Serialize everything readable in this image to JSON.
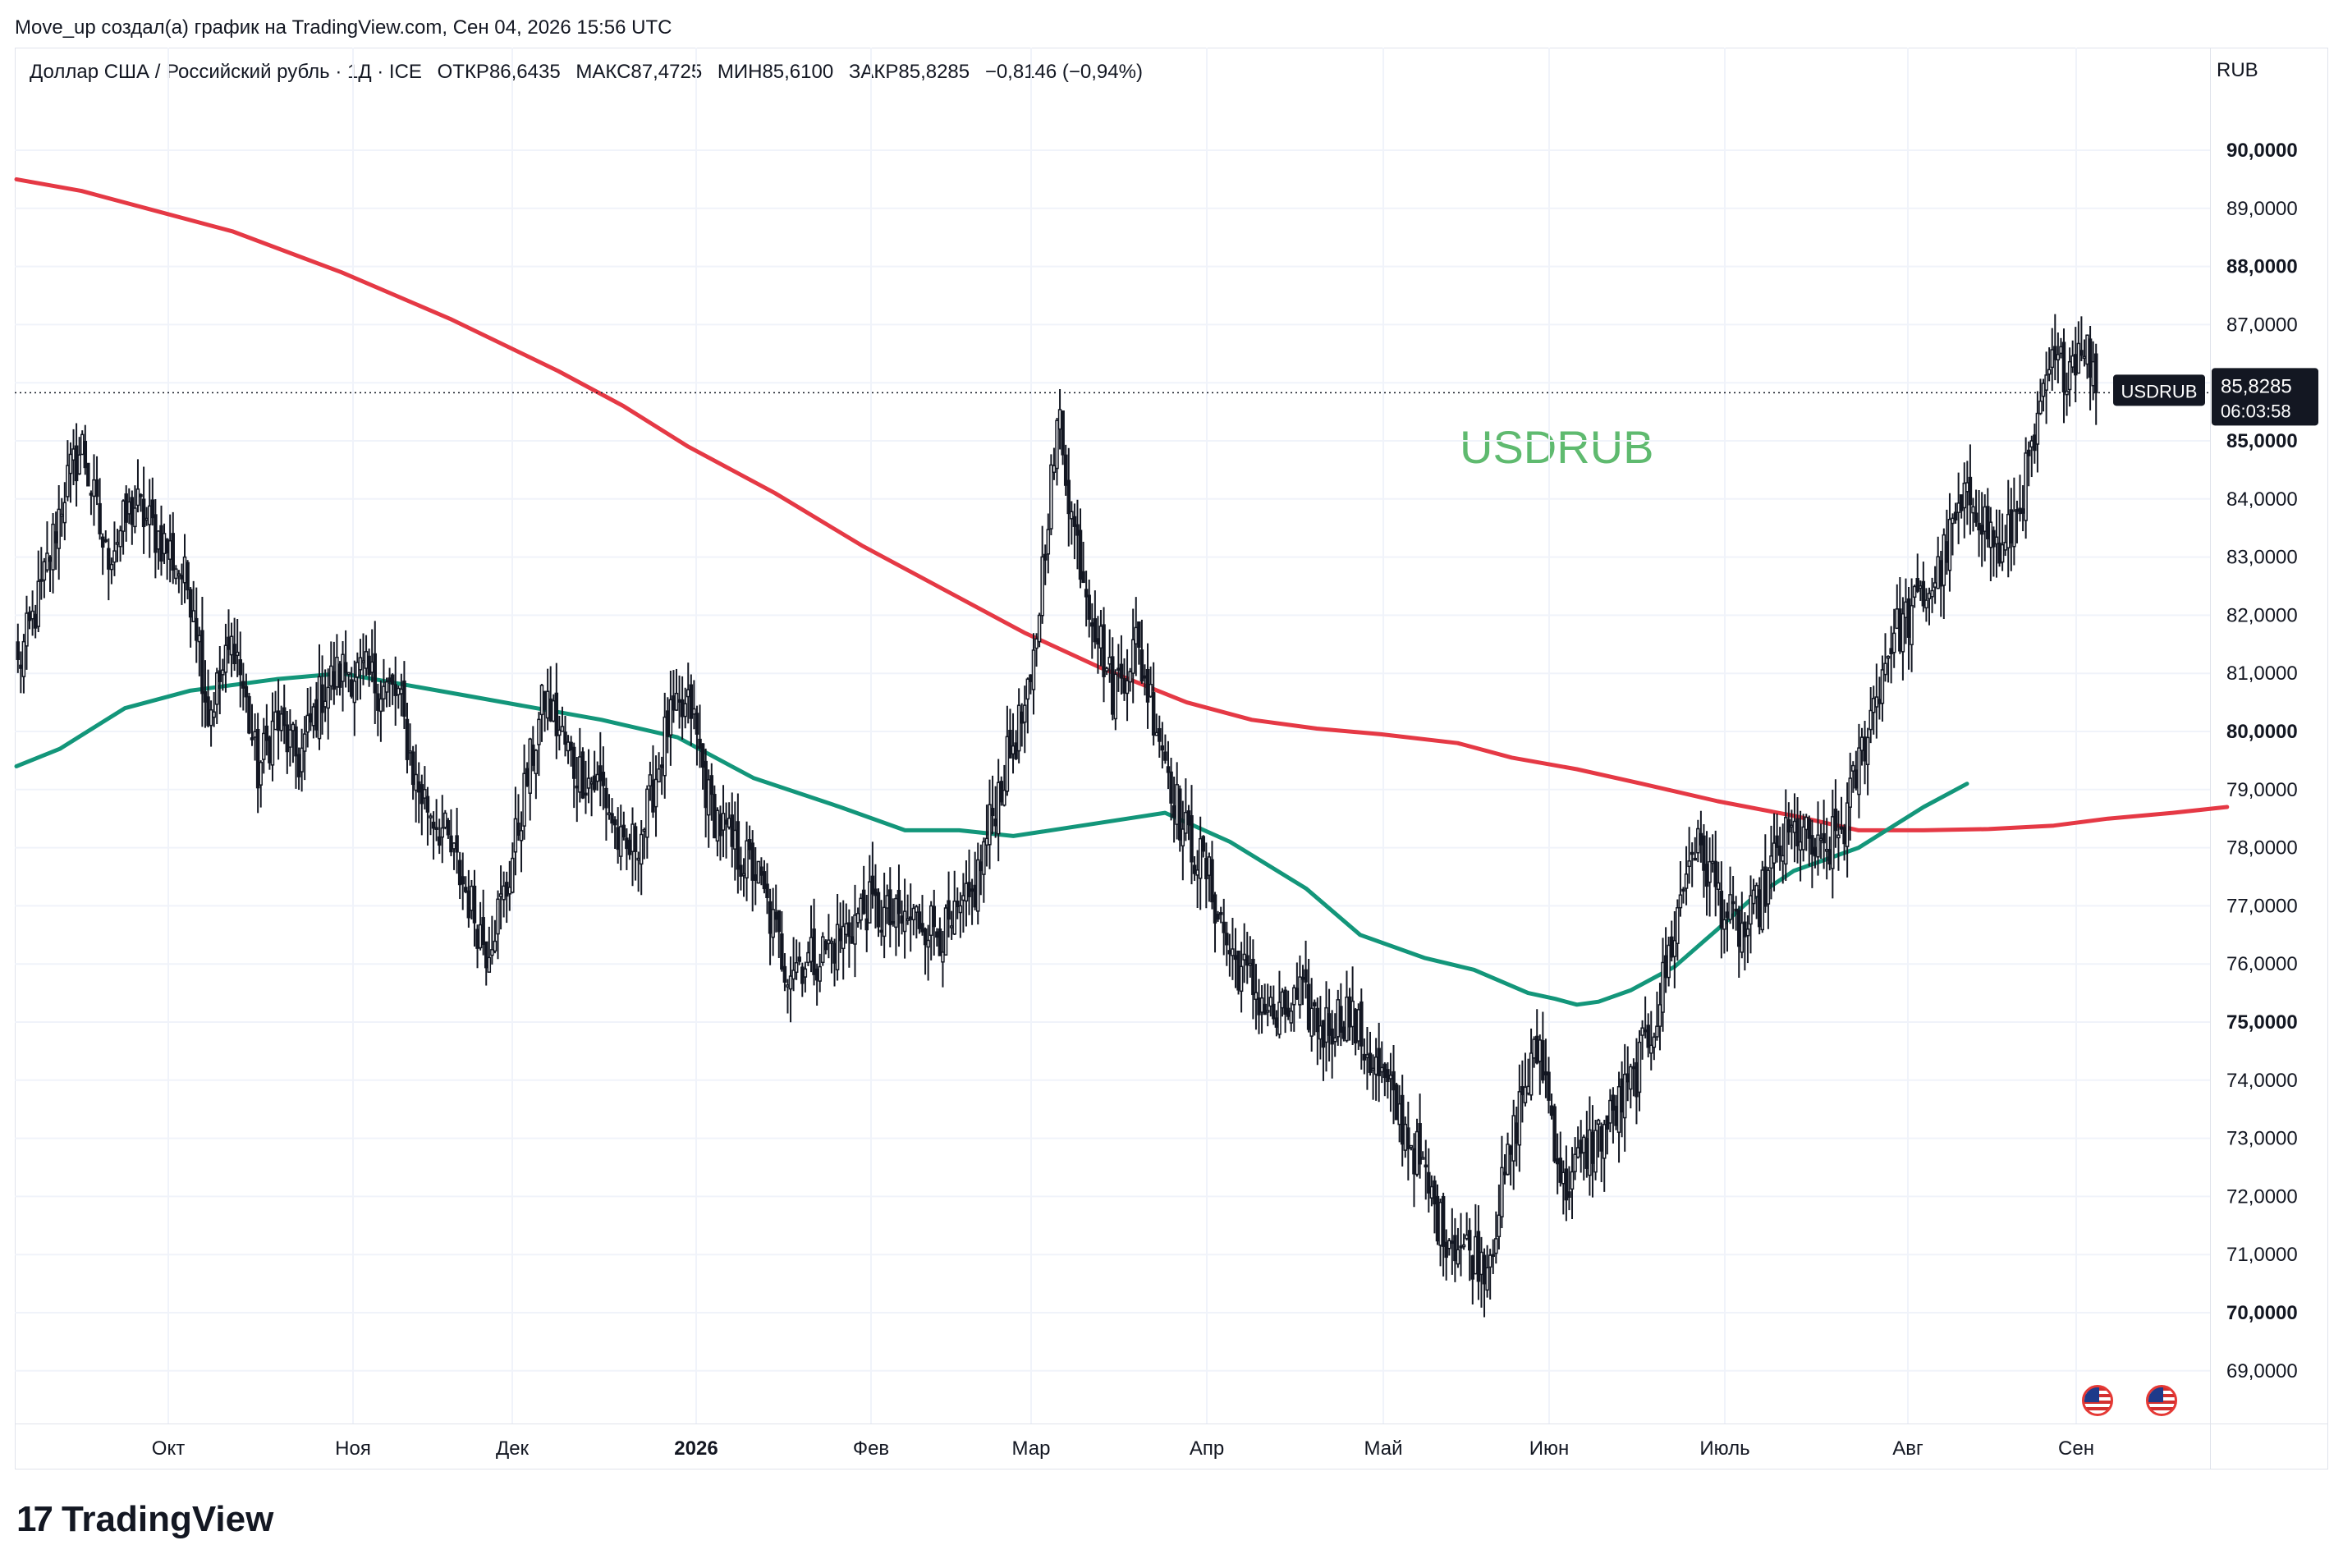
{
  "header": {
    "author_line": "Move_up создал(а) график на TradingView.com, Сен 04, 2026 15:56 UTC",
    "symbol": "Доллар США / Российский рубль · 1Д · ICE",
    "open_label": "ОТКР",
    "open": "86,6435",
    "high_label": "МАКС",
    "high": "87,4725",
    "low_label": "МИН",
    "low": "85,6100",
    "close_label": "ЗАКР",
    "close": "85,8285",
    "change": "−0,8146 (−0,94%)"
  },
  "currency": "RUB",
  "watermark": "USDRUB",
  "price_tag": {
    "symbol": "USDRUB",
    "price": "85,8285",
    "countdown": "06:03:58"
  },
  "branding": "TradingView",
  "chart_data": {
    "type": "candlestick",
    "title": "",
    "xlabel": "",
    "ylabel": "",
    "ylim": [
      68.3,
      91.2
    ],
    "grid": true,
    "y_ticks": [
      "90,0000",
      "89,0000",
      "88,0000",
      "87,0000",
      "86,0000",
      "85,0000",
      "84,0000",
      "83,0000",
      "82,0000",
      "81,0000",
      "80,0000",
      "79,0000",
      "78,0000",
      "77,0000",
      "76,0000",
      "75,0000",
      "74,0000",
      "73,0000",
      "72,0000",
      "71,0000",
      "70,0000",
      "69,0000"
    ],
    "y_tick_values": [
      90,
      89,
      88,
      87,
      86,
      85,
      84,
      83,
      82,
      81,
      80,
      79,
      78,
      77,
      76,
      75,
      74,
      73,
      72,
      71,
      70,
      69
    ],
    "bold_y_ticks": [
      90,
      88,
      85,
      80,
      75,
      70
    ],
    "x_ticks": [
      "Окт",
      "Ноя",
      "Дек",
      "2026",
      "Фев",
      "Мар",
      "Апр",
      "Май",
      "Июн",
      "Июль",
      "Авг",
      "Сен"
    ],
    "bold_x_ticks": [
      "2026"
    ],
    "last_price": 85.8285,
    "colors": {
      "up": "#ffffff",
      "down": "#131722",
      "wick": "#131722",
      "ma_fast": "#13967a",
      "ma_slow": "#e53945",
      "price_tag_bg": "#131722"
    },
    "price_anchors": [
      [
        0,
        81.1
      ],
      [
        8,
        82.4
      ],
      [
        16,
        84.2
      ],
      [
        22,
        84.9
      ],
      [
        30,
        83.0
      ],
      [
        40,
        83.9
      ],
      [
        52,
        83.1
      ],
      [
        60,
        82.3
      ],
      [
        65,
        80.3
      ],
      [
        74,
        81.6
      ],
      [
        82,
        79.3
      ],
      [
        88,
        80.2
      ],
      [
        96,
        79.5
      ],
      [
        104,
        80.7
      ],
      [
        112,
        81.1
      ],
      [
        120,
        80.9
      ],
      [
        130,
        80.6
      ],
      [
        136,
        79.1
      ],
      [
        145,
        78.3
      ],
      [
        152,
        77.4
      ],
      [
        160,
        76.3
      ],
      [
        167,
        77.3
      ],
      [
        174,
        79.2
      ],
      [
        180,
        80.6
      ],
      [
        190,
        79.4
      ],
      [
        200,
        79.0
      ],
      [
        207,
        77.8
      ],
      [
        214,
        78.4
      ],
      [
        222,
        80.1
      ],
      [
        230,
        80.4
      ],
      [
        236,
        78.8
      ],
      [
        244,
        78.0
      ],
      [
        252,
        77.6
      ],
      [
        262,
        76.0
      ],
      [
        272,
        76.1
      ],
      [
        280,
        76.4
      ],
      [
        290,
        77.0
      ],
      [
        300,
        76.7
      ],
      [
        308,
        76.8
      ],
      [
        318,
        76.5
      ],
      [
        326,
        77.1
      ],
      [
        334,
        78.8
      ],
      [
        340,
        79.8
      ],
      [
        346,
        80.6
      ],
      [
        352,
        83.9
      ],
      [
        356,
        85.4
      ],
      [
        360,
        83.7
      ],
      [
        366,
        82.3
      ],
      [
        374,
        80.7
      ],
      [
        382,
        81.5
      ],
      [
        390,
        80.0
      ],
      [
        398,
        78.3
      ],
      [
        406,
        77.6
      ],
      [
        414,
        76.2
      ],
      [
        422,
        75.6
      ],
      [
        430,
        75.0
      ],
      [
        438,
        75.4
      ],
      [
        446,
        74.9
      ],
      [
        454,
        75.2
      ],
      [
        462,
        74.4
      ],
      [
        470,
        73.6
      ],
      [
        478,
        72.7
      ],
      [
        486,
        71.5
      ],
      [
        494,
        71.1
      ],
      [
        502,
        70.9
      ],
      [
        508,
        72.3
      ],
      [
        514,
        73.8
      ],
      [
        520,
        74.6
      ],
      [
        528,
        72.1
      ],
      [
        536,
        72.8
      ],
      [
        544,
        73.3
      ],
      [
        552,
        74.0
      ],
      [
        560,
        75.2
      ],
      [
        566,
        76.6
      ],
      [
        572,
        78.1
      ],
      [
        578,
        77.6
      ],
      [
        584,
        76.8
      ],
      [
        590,
        76.5
      ],
      [
        596,
        77.2
      ],
      [
        602,
        78.0
      ],
      [
        608,
        78.3
      ],
      [
        616,
        77.8
      ],
      [
        624,
        78.4
      ],
      [
        632,
        80.1
      ],
      [
        640,
        81.6
      ],
      [
        648,
        82.1
      ],
      [
        656,
        82.7
      ],
      [
        662,
        83.6
      ],
      [
        668,
        84.1
      ],
      [
        672,
        83.6
      ],
      [
        678,
        83.0
      ],
      [
        684,
        84.0
      ],
      [
        690,
        85.1
      ],
      [
        694,
        86.2
      ],
      [
        700,
        86.3
      ],
      [
        706,
        86.8
      ],
      [
        710,
        85.8
      ]
    ],
    "ma_fast_anchors": [
      [
        0,
        79.4
      ],
      [
        40,
        79.7
      ],
      [
        100,
        80.4
      ],
      [
        160,
        80.7
      ],
      [
        240,
        80.9
      ],
      [
        300,
        81.0
      ],
      [
        360,
        80.8
      ],
      [
        420,
        80.6
      ],
      [
        480,
        80.4
      ],
      [
        540,
        80.2
      ],
      [
        610,
        79.9
      ],
      [
        680,
        79.2
      ],
      [
        760,
        78.7
      ],
      [
        820,
        78.3
      ],
      [
        870,
        78.3
      ],
      [
        920,
        78.2
      ],
      [
        990,
        78.4
      ],
      [
        1060,
        78.6
      ],
      [
        1120,
        78.1
      ],
      [
        1190,
        77.3
      ],
      [
        1240,
        76.5
      ],
      [
        1300,
        76.1
      ],
      [
        1345,
        75.9
      ],
      [
        1370,
        75.7
      ],
      [
        1395,
        75.5
      ],
      [
        1420,
        75.4
      ],
      [
        1440,
        75.3
      ],
      [
        1460,
        75.35
      ],
      [
        1490,
        75.55
      ],
      [
        1530,
        75.95
      ],
      [
        1570,
        76.6
      ],
      [
        1600,
        77.1
      ],
      [
        1640,
        77.6
      ],
      [
        1700,
        78.0
      ],
      [
        1760,
        78.7
      ],
      [
        1800,
        79.1
      ]
    ],
    "ma_slow_anchors": [
      [
        0,
        89.5
      ],
      [
        60,
        89.3
      ],
      [
        120,
        89.0
      ],
      [
        200,
        88.6
      ],
      [
        300,
        87.9
      ],
      [
        400,
        87.1
      ],
      [
        500,
        86.2
      ],
      [
        560,
        85.6
      ],
      [
        620,
        84.9
      ],
      [
        700,
        84.1
      ],
      [
        780,
        83.2
      ],
      [
        860,
        82.4
      ],
      [
        930,
        81.7
      ],
      [
        1000,
        81.1
      ],
      [
        1080,
        80.5
      ],
      [
        1140,
        80.2
      ],
      [
        1200,
        80.05
      ],
      [
        1260,
        79.95
      ],
      [
        1330,
        79.8
      ],
      [
        1380,
        79.55
      ],
      [
        1440,
        79.35
      ],
      [
        1500,
        79.1
      ],
      [
        1570,
        78.8
      ],
      [
        1640,
        78.55
      ],
      [
        1700,
        78.3
      ],
      [
        1760,
        78.3
      ],
      [
        1820,
        78.32
      ],
      [
        1880,
        78.38
      ],
      [
        1930,
        78.5
      ],
      [
        1990,
        78.6
      ],
      [
        2040,
        78.7
      ]
    ]
  }
}
